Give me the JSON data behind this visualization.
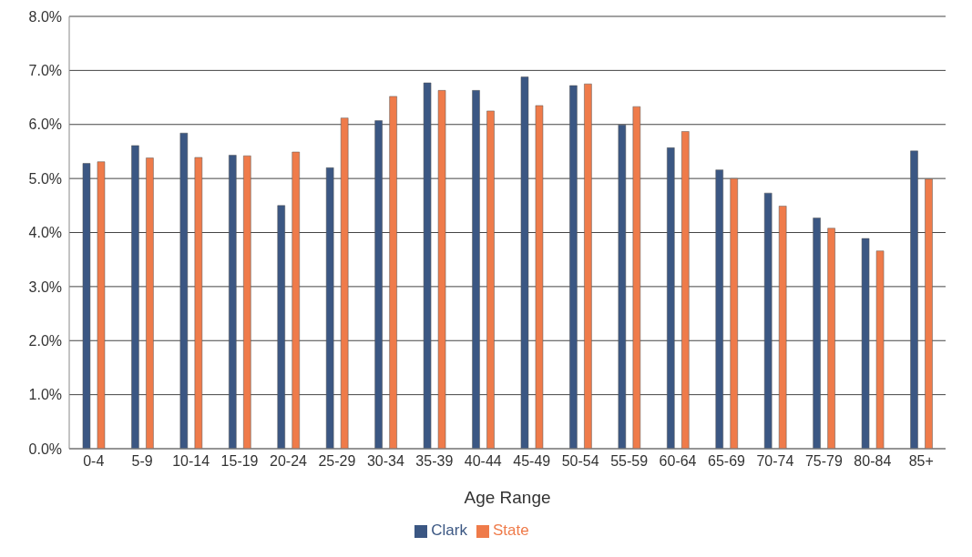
{
  "chart_data": {
    "type": "bar",
    "xlabel": "Age Range",
    "categories": [
      "0-4",
      "5-9",
      "10-14",
      "15-19",
      "20-24",
      "25-29",
      "30-34",
      "35-39",
      "40-44",
      "45-49",
      "50-54",
      "55-59",
      "60-64",
      "65-69",
      "70-74",
      "75-79",
      "80-84",
      "85+"
    ],
    "series": [
      {
        "name": "Clark",
        "color": "#3b5783",
        "values": [
          5.28,
          5.61,
          5.84,
          5.43,
          4.5,
          5.2,
          6.07,
          6.77,
          6.63,
          6.88,
          6.72,
          5.99,
          5.57,
          5.16,
          4.73,
          4.27,
          3.89,
          5.51
        ]
      },
      {
        "name": "State",
        "color": "#ef7b4a",
        "values": [
          5.31,
          5.38,
          5.39,
          5.42,
          5.49,
          6.12,
          6.52,
          6.63,
          6.25,
          6.35,
          6.75,
          6.33,
          5.87,
          5,
          4.49,
          4.08,
          3.66,
          4.99
        ]
      }
    ],
    "ylim": [
      0,
      8
    ],
    "yticks": [
      {
        "value": 0,
        "label": "0.0%"
      },
      {
        "value": 1,
        "label": "1.0%"
      },
      {
        "value": 2,
        "label": "2.0%"
      },
      {
        "value": 3,
        "label": "3.0%"
      },
      {
        "value": 4,
        "label": "4.0%"
      },
      {
        "value": 5,
        "label": "5.0%"
      },
      {
        "value": 6,
        "label": "6.0%"
      },
      {
        "value": 7,
        "label": "7.0%"
      },
      {
        "value": 8,
        "label": "8.0%"
      }
    ],
    "grid": "y",
    "legend": "bottom"
  }
}
